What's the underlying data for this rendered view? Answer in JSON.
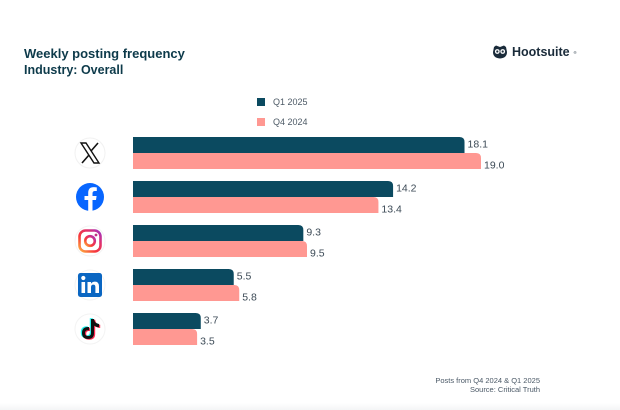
{
  "header": {
    "title": "Weekly posting frequency",
    "subtitle": "Industry: Overall",
    "brand": "Hootsuite",
    "brand_mark": "®"
  },
  "legend": [
    {
      "label": "Q1 2025",
      "color": "#0b4a60"
    },
    {
      "label": "Q4 2024",
      "color": "#ff9892"
    }
  ],
  "footer": {
    "line1": "Posts from Q4 2024 & Q1 2025",
    "line2": "Source: Critical Truth"
  },
  "chart_data": {
    "type": "bar",
    "orientation": "horizontal",
    "title": "Weekly posting frequency",
    "subtitle": "Industry: Overall",
    "categories": [
      "X",
      "Facebook",
      "Instagram",
      "LinkedIn",
      "TikTok"
    ],
    "category_icons": [
      "x-logo-icon",
      "facebook-icon",
      "instagram-icon",
      "linkedin-icon",
      "tiktok-icon"
    ],
    "series": [
      {
        "name": "Q1 2025",
        "color": "#0b4a60",
        "values": [
          18.1,
          14.2,
          9.3,
          5.5,
          3.7
        ]
      },
      {
        "name": "Q4 2024",
        "color": "#ff9892",
        "values": [
          19.0,
          13.4,
          9.5,
          5.8,
          3.5
        ]
      }
    ],
    "data_labels": true,
    "xlabel": "",
    "ylabel": "",
    "xlim": [
      0,
      19.0
    ],
    "grid": false,
    "legend_position": "top-center",
    "footnote": "Posts from Q4 2024 & Q1 2025",
    "source": "Source: Critical Truth"
  }
}
